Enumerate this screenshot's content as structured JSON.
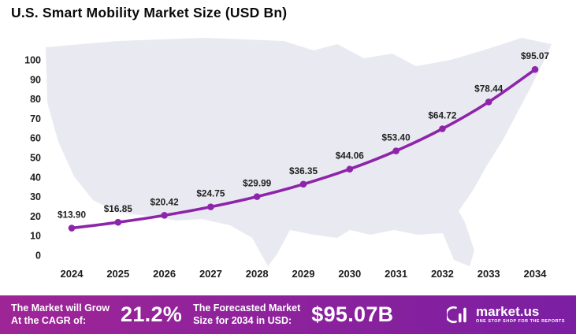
{
  "colors": {
    "line": "#8e24aa",
    "footer_gradient_start": "#9e2596",
    "footer_gradient_end": "#7b1fa2",
    "map_fill": "#e9eaf1"
  },
  "chart_data": {
    "type": "line",
    "title": "U.S. Smart Mobility Market Size (USD Bn)",
    "xlabel": "",
    "ylabel": "",
    "categories": [
      "2024",
      "2025",
      "2026",
      "2027",
      "2028",
      "2029",
      "2030",
      "2031",
      "2032",
      "2033",
      "2034"
    ],
    "values": [
      13.9,
      16.85,
      20.42,
      24.75,
      29.99,
      36.35,
      44.06,
      53.4,
      64.72,
      78.44,
      95.07
    ],
    "point_labels": [
      "$13.90",
      "$16.85",
      "$20.42",
      "$24.75",
      "$29.99",
      "$36.35",
      "$44.06",
      "$53.40",
      "$64.72",
      "$78.44",
      "$95.07"
    ],
    "y_ticks": [
      0,
      10,
      20,
      30,
      40,
      50,
      60,
      70,
      80,
      90,
      100
    ],
    "ylim": [
      0,
      100
    ],
    "grid": false,
    "legend": "none",
    "background": "us-map-silhouette"
  },
  "footer": {
    "cagr_label_line1": "The Market will Grow",
    "cagr_label_line2": "At the CAGR of:",
    "cagr_value": "21.2%",
    "forecast_label_line1": "The Forecasted Market",
    "forecast_label_line2": "Size for 2034 in USD:",
    "forecast_value": "$95.07B",
    "brand": "market.us",
    "brand_tagline": "ONE STOP SHOP FOR THE REPORTS"
  }
}
